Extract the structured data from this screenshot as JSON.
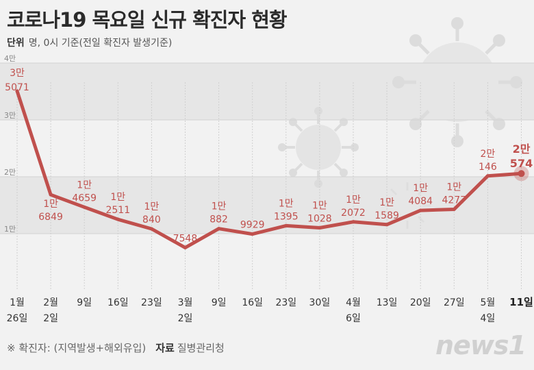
{
  "header": {
    "title": "코로나19 목요일 신규 확진자 현황",
    "unit_label": "단위",
    "unit_text": "명, 0시 기준(전일 확진자 발생기준)"
  },
  "footer": {
    "note": "※ 확진자: (지역발생+해외유입)",
    "source_label": "자료",
    "source": "질병관리청",
    "logo": "news1"
  },
  "colors": {
    "line": "#c0504d",
    "label": "#c0504d",
    "axis_text": "#333333"
  },
  "chart_data": {
    "type": "line",
    "title": "코로나19 목요일 신규 확진자 현황",
    "ylim": [
      0,
      40000
    ],
    "y_ticks": [
      {
        "value": 10000,
        "label": "1만"
      },
      {
        "value": 20000,
        "label": "2만"
      },
      {
        "value": 30000,
        "label": "3만"
      },
      {
        "value": 40000,
        "label": "4만"
      }
    ],
    "points": [
      {
        "x": "1월 26일",
        "x_top": "1월",
        "x_bottom": "26일",
        "value": 35071,
        "label_top": "3만",
        "label_bottom": "5071",
        "label_pos": "above"
      },
      {
        "x": "2월 2일",
        "x_top": "2월",
        "x_bottom": "2일",
        "value": 16849,
        "label_top": "1만",
        "label_bottom": "6849",
        "label_pos": "below"
      },
      {
        "x": "9일",
        "x_top": "9일",
        "x_bottom": "",
        "value": 14659,
        "label_top": "1만",
        "label_bottom": "4659",
        "label_pos": "above"
      },
      {
        "x": "16일",
        "x_top": "16일",
        "x_bottom": "",
        "value": 12511,
        "label_top": "1만",
        "label_bottom": "2511",
        "label_pos": "above"
      },
      {
        "x": "23일",
        "x_top": "23일",
        "x_bottom": "",
        "value": 10840,
        "label_top": "1만",
        "label_bottom": "840",
        "label_pos": "above"
      },
      {
        "x": "3월 2일",
        "x_top": "3월",
        "x_bottom": "2일",
        "value": 7548,
        "label_top": "",
        "label_bottom": "7548",
        "label_pos": "above"
      },
      {
        "x": "9일",
        "x_top": "9일",
        "x_bottom": "",
        "value": 10882,
        "label_top": "1만",
        "label_bottom": "882",
        "label_pos": "above"
      },
      {
        "x": "16일",
        "x_top": "16일",
        "x_bottom": "",
        "value": 9929,
        "label_top": "",
        "label_bottom": "9929",
        "label_pos": "above"
      },
      {
        "x": "23일",
        "x_top": "23일",
        "x_bottom": "",
        "value": 11395,
        "label_top": "1만",
        "label_bottom": "1395",
        "label_pos": "above"
      },
      {
        "x": "30일",
        "x_top": "30일",
        "x_bottom": "",
        "value": 11028,
        "label_top": "1만",
        "label_bottom": "1028",
        "label_pos": "above"
      },
      {
        "x": "4월 6일",
        "x_top": "4월",
        "x_bottom": "6일",
        "value": 12072,
        "label_top": "1만",
        "label_bottom": "2072",
        "label_pos": "above"
      },
      {
        "x": "13일",
        "x_top": "13일",
        "x_bottom": "",
        "value": 11589,
        "label_top": "1만",
        "label_bottom": "1589",
        "label_pos": "above"
      },
      {
        "x": "20일",
        "x_top": "20일",
        "x_bottom": "",
        "value": 14084,
        "label_top": "1만",
        "label_bottom": "4084",
        "label_pos": "above"
      },
      {
        "x": "27일",
        "x_top": "27일",
        "x_bottom": "",
        "value": 14277,
        "label_top": "1만",
        "label_bottom": "4277",
        "label_pos": "above"
      },
      {
        "x": "5월 4일",
        "x_top": "5월",
        "x_bottom": "4일",
        "value": 20146,
        "label_top": "2만",
        "label_bottom": "146",
        "label_pos": "above"
      },
      {
        "x": "11일",
        "x_top": "11일",
        "x_bottom": "",
        "value": 20574,
        "label_top": "2만",
        "label_bottom": "574",
        "label_pos": "above",
        "highlight": true
      }
    ]
  }
}
